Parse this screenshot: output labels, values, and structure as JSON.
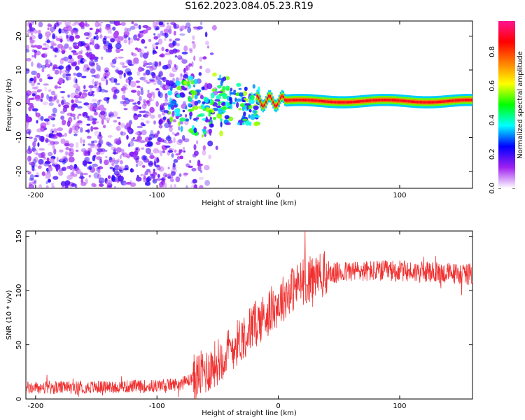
{
  "title": "S162.2023.084.05.23.R19",
  "chart_data": [
    {
      "type": "heatmap",
      "xlabel": "Height of straight line (km)",
      "ylabel": "Frequency (Hz)",
      "xlim": [
        -208,
        160
      ],
      "ylim": [
        -25,
        24.5
      ],
      "xticks": [
        -200,
        -100,
        0,
        100
      ],
      "yticks": [
        -20,
        -10,
        0,
        10,
        20
      ],
      "colorbar": {
        "label": "Normalized spectral amplitude",
        "range": [
          0,
          0.98
        ],
        "ticks": [
          0.0,
          0.2,
          0.4,
          0.6,
          0.8
        ],
        "colors": [
          "#ffffff",
          "#a020f0",
          "#0000ff",
          "#00ffff",
          "#00ff00",
          "#ffff00",
          "#ff7f00",
          "#ff0000",
          "#ff1493"
        ]
      },
      "features": {
        "noise_region_x": [
          -208,
          -60
        ],
        "tone_start_x": -18,
        "tone_end_x": 160,
        "tone_frequency": 0.8,
        "tone_amplitude": 0.9
      }
    },
    {
      "type": "line",
      "xlabel": "Height of straight line (km)",
      "ylabel": "SNR (10 * v/v)",
      "xlim": [
        -208,
        160
      ],
      "ylim": [
        0,
        155
      ],
      "xticks": [
        -200,
        -100,
        0,
        100
      ],
      "yticks": [
        0,
        50,
        100,
        150
      ],
      "series": [
        {
          "color": "#f03030",
          "envelope_x": [
            -208,
            -150,
            -100,
            -80,
            -60,
            -40,
            -20,
            -10,
            0,
            10,
            20,
            30,
            40,
            60,
            100,
            140,
            160
          ],
          "envelope_y": [
            10,
            11,
            12,
            14,
            25,
            45,
            68,
            78,
            88,
            100,
            108,
            113,
            115,
            118,
            118,
            116,
            115
          ]
        }
      ]
    }
  ]
}
